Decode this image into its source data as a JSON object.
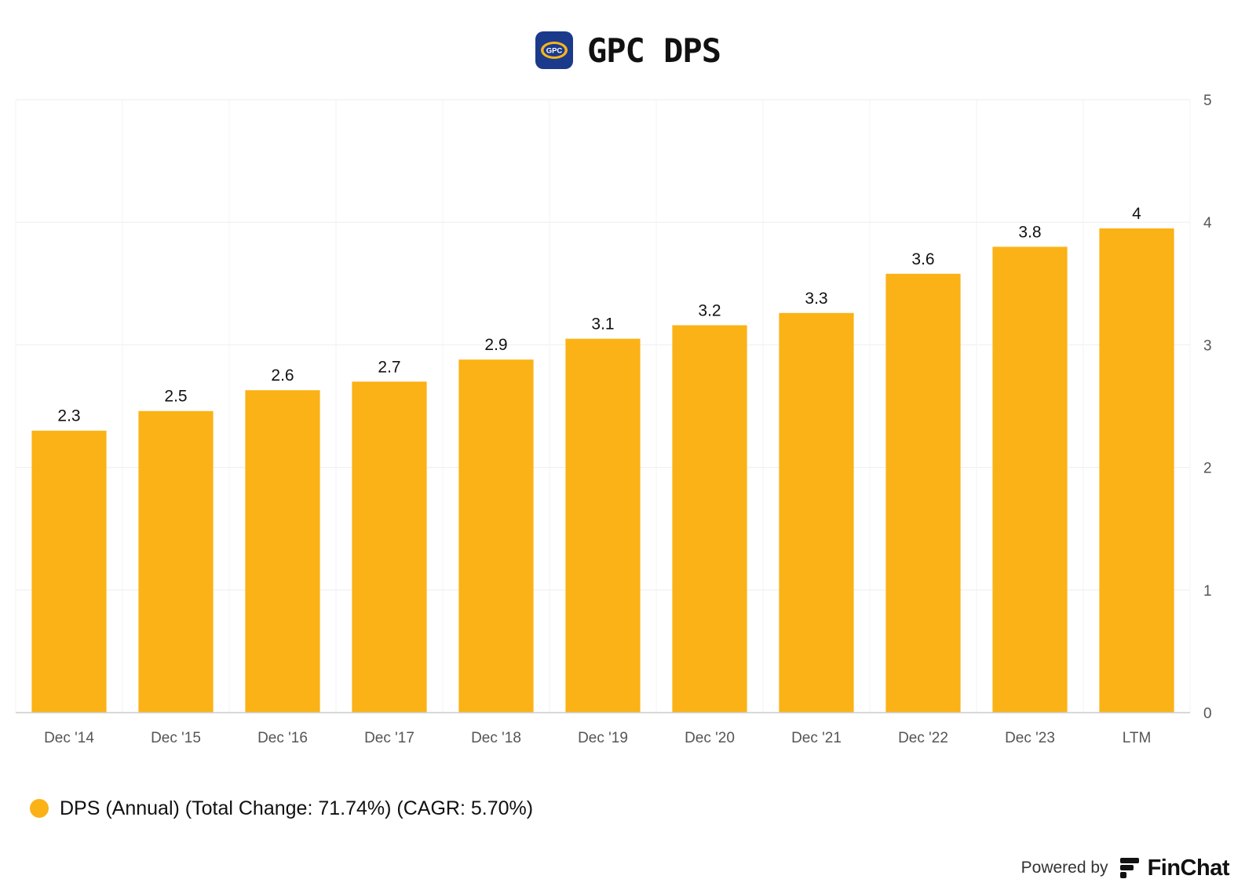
{
  "header": {
    "logo_text": "GPC",
    "title": "GPC DPS"
  },
  "colors": {
    "bar": "#FBB216",
    "logo_bg": "#1B3A8C",
    "logo_accent": "#F6B51A",
    "grid": "#EEEEEE",
    "axis_text": "#555555"
  },
  "chart_data": {
    "type": "bar",
    "title": "GPC DPS",
    "categories": [
      "Dec '14",
      "Dec '15",
      "Dec '16",
      "Dec '17",
      "Dec '18",
      "Dec '19",
      "Dec '20",
      "Dec '21",
      "Dec '22",
      "Dec '23",
      "LTM"
    ],
    "series": [
      {
        "name": "DPS (Annual)",
        "values": [
          2.3,
          2.46,
          2.63,
          2.7,
          2.88,
          3.05,
          3.16,
          3.26,
          3.58,
          3.8,
          3.95
        ],
        "labels": [
          "2.3",
          "2.5",
          "2.6",
          "2.7",
          "2.9",
          "3.1",
          "3.2",
          "3.3",
          "3.6",
          "3.8",
          "4"
        ]
      }
    ],
    "ylim": [
      0,
      5
    ],
    "yticks": [
      "0",
      "1",
      "2",
      "3",
      "4",
      "5"
    ],
    "y_axis_side": "right",
    "grid": true,
    "legend_position": "bottom-left"
  },
  "legend": {
    "label": "DPS (Annual) (Total Change: 71.74%) (CAGR: 5.70%)"
  },
  "footer": {
    "powered_by": "Powered by",
    "brand": "FinChat"
  }
}
